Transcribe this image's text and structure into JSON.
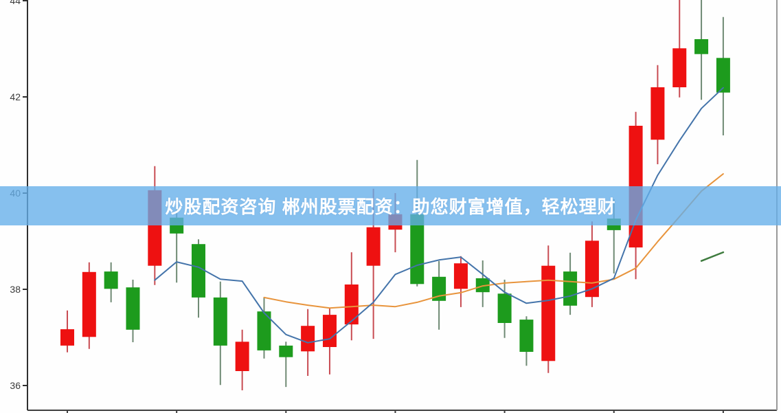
{
  "banner": {
    "text": "炒股配资咨询 郴州股票配资：助您财富增值，轻松理财",
    "bg_color": "#64aee9",
    "bg_opacity": 0.78,
    "text_color": "#ffffff"
  },
  "chart_data": {
    "type": "candlestick",
    "title": "",
    "xlabel": "",
    "ylabel": "",
    "grid": false,
    "legend": "none",
    "convention": "chinese (red = up, green = down)",
    "y_ticks": [
      36,
      38,
      40,
      42,
      44
    ],
    "ylim": [
      35.43,
      44.01
    ],
    "x_tick_indices": [
      0,
      5,
      10,
      15,
      20,
      25,
      30
    ],
    "colors": {
      "up": "#ee1111",
      "down": "#1d9b1d",
      "up_wick": "#c84b52",
      "down_wick": "#6f8a74",
      "ma5": "#4474aa",
      "ma10": "#e8943c",
      "ma20": "#3e7b3e",
      "axis": "#3a3a3a",
      "right_spine": "#999999"
    },
    "candles": [
      {
        "dir": "up",
        "o": 36.83,
        "h": 37.56,
        "l": 36.69,
        "c": 37.17
      },
      {
        "dir": "up",
        "o": 37.01,
        "h": 38.56,
        "l": 36.76,
        "c": 38.36
      },
      {
        "dir": "down",
        "o": 38.37,
        "h": 38.56,
        "l": 37.73,
        "c": 38.01
      },
      {
        "dir": "down",
        "o": 38.04,
        "h": 38.2,
        "l": 36.9,
        "c": 37.16
      },
      {
        "dir": "up",
        "o": 38.49,
        "h": 40.56,
        "l": 38.09,
        "c": 40.06
      },
      {
        "dir": "down",
        "o": 39.49,
        "h": 39.77,
        "l": 38.14,
        "c": 39.16
      },
      {
        "dir": "down",
        "o": 38.94,
        "h": 39.04,
        "l": 37.41,
        "c": 37.83
      },
      {
        "dir": "down",
        "o": 37.83,
        "h": 38.16,
        "l": 36.01,
        "c": 36.83
      },
      {
        "dir": "up",
        "o": 36.3,
        "h": 37.16,
        "l": 35.9,
        "c": 36.91
      },
      {
        "dir": "down",
        "o": 37.54,
        "h": 37.84,
        "l": 36.56,
        "c": 36.73
      },
      {
        "dir": "down",
        "o": 36.83,
        "h": 36.91,
        "l": 35.97,
        "c": 36.59
      },
      {
        "dir": "up",
        "o": 36.71,
        "h": 37.59,
        "l": 36.2,
        "c": 37.24
      },
      {
        "dir": "up",
        "o": 36.8,
        "h": 37.61,
        "l": 36.23,
        "c": 37.47
      },
      {
        "dir": "up",
        "o": 37.27,
        "h": 38.77,
        "l": 36.94,
        "c": 38.1
      },
      {
        "dir": "up",
        "o": 38.49,
        "h": 40.09,
        "l": 36.97,
        "c": 39.29
      },
      {
        "dir": "up",
        "o": 39.24,
        "h": 40.0,
        "l": 38.77,
        "c": 39.56
      },
      {
        "dir": "down",
        "o": 39.56,
        "h": 40.69,
        "l": 38.06,
        "c": 38.11
      },
      {
        "dir": "down",
        "o": 38.26,
        "h": 38.59,
        "l": 37.16,
        "c": 37.76
      },
      {
        "dir": "up",
        "o": 38.01,
        "h": 38.69,
        "l": 37.63,
        "c": 38.54
      },
      {
        "dir": "down",
        "o": 38.23,
        "h": 38.6,
        "l": 37.63,
        "c": 37.94
      },
      {
        "dir": "down",
        "o": 37.91,
        "h": 38.2,
        "l": 36.99,
        "c": 37.3
      },
      {
        "dir": "down",
        "o": 37.37,
        "h": 37.44,
        "l": 36.41,
        "c": 36.7
      },
      {
        "dir": "up",
        "o": 36.51,
        "h": 38.91,
        "l": 36.26,
        "c": 38.49
      },
      {
        "dir": "down",
        "o": 38.37,
        "h": 38.76,
        "l": 37.47,
        "c": 37.66
      },
      {
        "dir": "up",
        "o": 37.84,
        "h": 39.41,
        "l": 37.63,
        "c": 39.01
      },
      {
        "dir": "down",
        "o": 39.47,
        "h": 39.87,
        "l": 38.33,
        "c": 39.23
      },
      {
        "dir": "up",
        "o": 38.87,
        "h": 41.69,
        "l": 38.21,
        "c": 41.4
      },
      {
        "dir": "up",
        "o": 41.11,
        "h": 42.66,
        "l": 40.6,
        "c": 42.2
      },
      {
        "dir": "up",
        "o": 42.2,
        "h": 44.05,
        "l": 41.99,
        "c": 43.01
      },
      {
        "dir": "down",
        "o": 43.2,
        "h": 44.1,
        "l": 41.94,
        "c": 42.89
      },
      {
        "dir": "down",
        "o": 42.81,
        "h": 43.66,
        "l": 41.2,
        "c": 42.09
      }
    ],
    "ma5": {
      "start_index": 4,
      "values": [
        38.19,
        38.57,
        38.46,
        38.21,
        38.17,
        37.51,
        37.06,
        36.89,
        36.97,
        37.34,
        37.73,
        38.31,
        38.5,
        38.61,
        38.67,
        38.31,
        37.94,
        37.71,
        37.77,
        37.86,
        38.01,
        38.23,
        39.44,
        40.37,
        41.09,
        41.76,
        42.19
      ]
    },
    "ma10": {
      "start_index": 9,
      "values": [
        37.83,
        37.74,
        37.67,
        37.61,
        37.64,
        37.67,
        37.64,
        37.73,
        37.86,
        37.93,
        38.07,
        38.13,
        38.16,
        38.19,
        38.16,
        38.13,
        38.21,
        38.44,
        38.99,
        39.51,
        40.04,
        40.4
      ]
    },
    "ma20_segment": {
      "start_index": 29,
      "values": [
        38.59,
        38.77
      ]
    }
  }
}
